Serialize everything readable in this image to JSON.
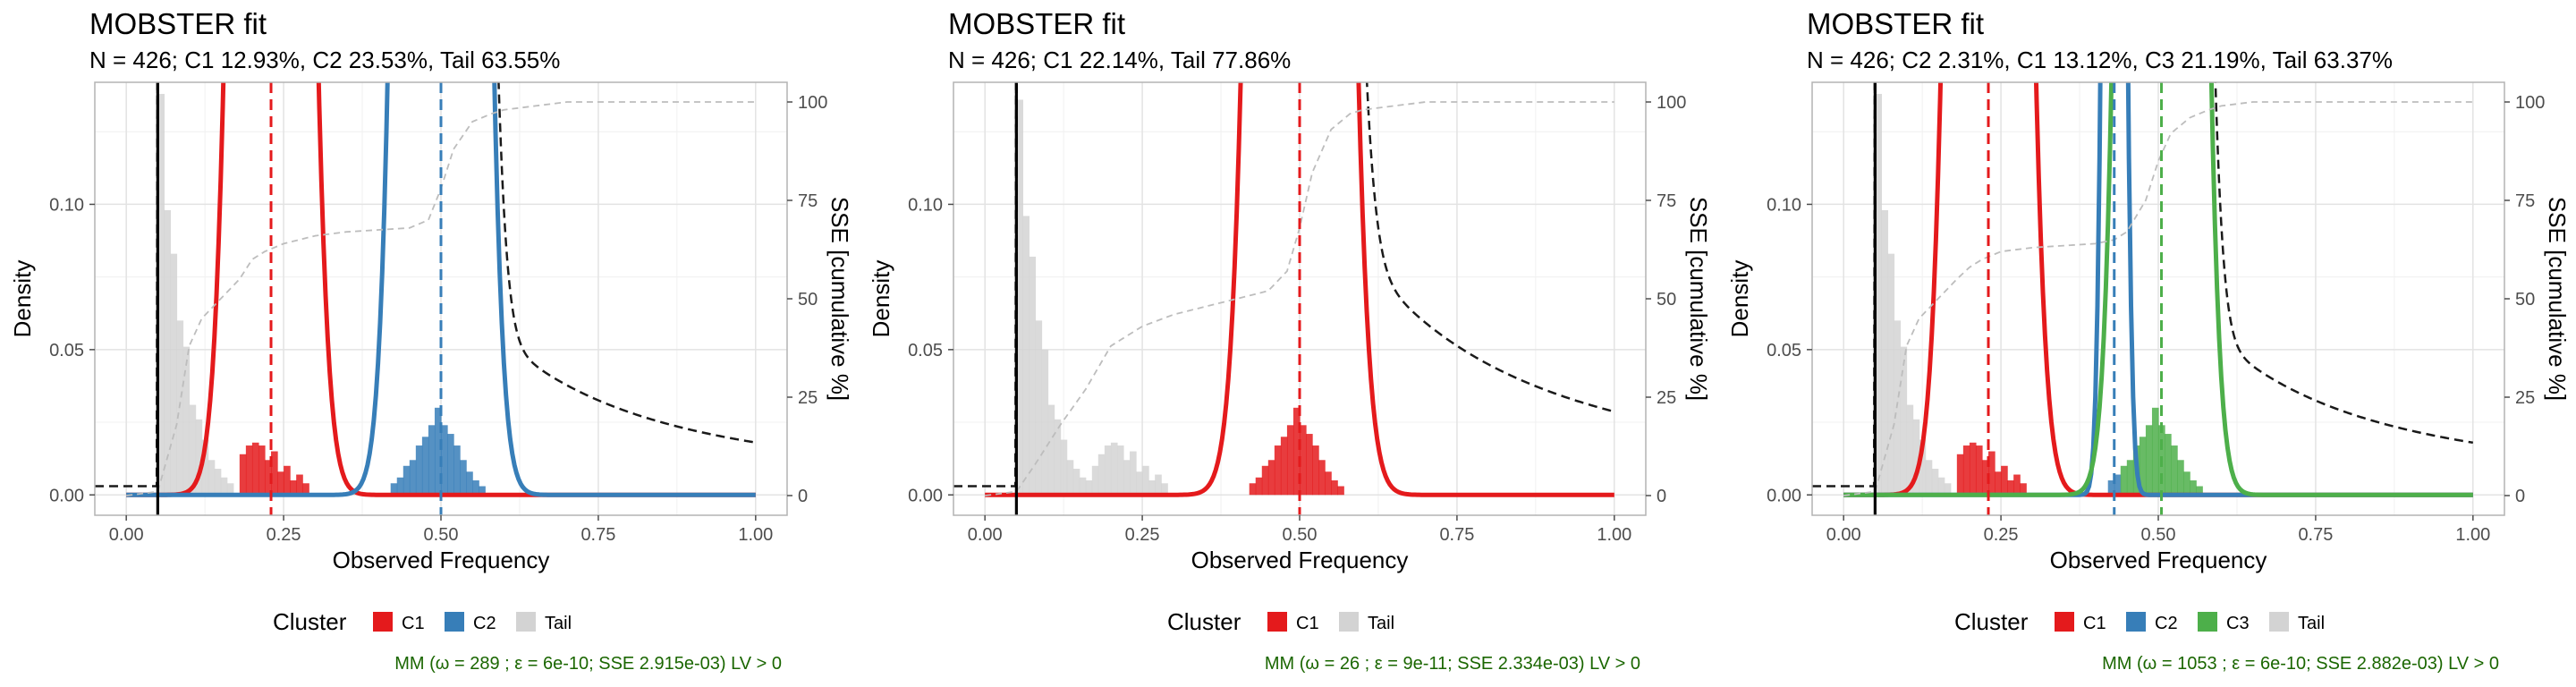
{
  "chart_data": [
    {
      "type": "histogram",
      "title": "MOBSTER fit",
      "subtitle": "N = 426; C1 12.93%, C2 23.53%, Tail 63.55%",
      "xlabel": "Observed Frequency",
      "ylabel": "Density",
      "y2label": "SSE [cumulative %]",
      "xlim": [
        -0.05,
        1.05
      ],
      "ylim": [
        -0.007,
        0.142
      ],
      "y2lim": [
        -5,
        105
      ],
      "xticks": [
        0,
        0.25,
        0.5,
        0.75,
        1
      ],
      "xtick_labels": [
        "0.00",
        "0.25",
        "0.50",
        "0.75",
        "1.00"
      ],
      "yticks": [
        0,
        0.05,
        0.1
      ],
      "ytick_labels": [
        "0.00",
        "0.05",
        "0.10"
      ],
      "y2ticks": [
        0,
        25,
        50,
        75,
        100
      ],
      "y2tick_labels": [
        "0",
        "25",
        "50",
        "75",
        "100"
      ],
      "grid": true,
      "legend_position": "bottom",
      "legend_title": "Cluster",
      "legend": [
        {
          "label": "C1",
          "color": "#E41A1C"
        },
        {
          "label": "C2",
          "color": "#377EB8"
        },
        {
          "label": "Tail",
          "color": "#D3D3D3"
        }
      ],
      "caption": "MM (ω = 289 ; ε = 6e-10; SSE 2.915e-03) LV > 0",
      "tail": {
        "xmin": 0.05,
        "alpha": 1.35,
        "weight": 0.6355
      },
      "components": [
        {
          "name": "C1",
          "mean": 0.23,
          "sd": 0.035,
          "weight": 0.1293,
          "color": "#E41A1C"
        },
        {
          "name": "C2",
          "mean": 0.5,
          "sd": 0.035,
          "weight": 0.2353,
          "color": "#377EB8"
        }
      ],
      "mean_lines": [
        {
          "x": 0.05,
          "color": "#000000"
        },
        {
          "x": 0.23,
          "color": "#E41A1C"
        },
        {
          "x": 0.5,
          "color": "#377EB8"
        }
      ],
      "bars": [
        {
          "x": 0.055,
          "y": 0.138,
          "cluster": "Tail"
        },
        {
          "x": 0.065,
          "y": 0.098,
          "cluster": "Tail"
        },
        {
          "x": 0.075,
          "y": 0.083,
          "cluster": "Tail"
        },
        {
          "x": 0.085,
          "y": 0.06,
          "cluster": "Tail"
        },
        {
          "x": 0.095,
          "y": 0.051,
          "cluster": "Tail"
        },
        {
          "x": 0.105,
          "y": 0.031,
          "cluster": "Tail"
        },
        {
          "x": 0.115,
          "y": 0.026,
          "cluster": "Tail"
        },
        {
          "x": 0.125,
          "y": 0.019,
          "cluster": "Tail"
        },
        {
          "x": 0.135,
          "y": 0.012,
          "cluster": "Tail"
        },
        {
          "x": 0.145,
          "y": 0.009,
          "cluster": "Tail"
        },
        {
          "x": 0.155,
          "y": 0.006,
          "cluster": "Tail"
        },
        {
          "x": 0.165,
          "y": 0.004,
          "cluster": "Tail"
        },
        {
          "x": 0.185,
          "y": 0.014,
          "cluster": "C1"
        },
        {
          "x": 0.195,
          "y": 0.017,
          "cluster": "C1"
        },
        {
          "x": 0.205,
          "y": 0.018,
          "cluster": "C1"
        },
        {
          "x": 0.215,
          "y": 0.017,
          "cluster": "C1"
        },
        {
          "x": 0.225,
          "y": 0.012,
          "cluster": "C1"
        },
        {
          "x": 0.235,
          "y": 0.015,
          "cluster": "C1"
        },
        {
          "x": 0.245,
          "y": 0.008,
          "cluster": "C1"
        },
        {
          "x": 0.255,
          "y": 0.01,
          "cluster": "C1"
        },
        {
          "x": 0.265,
          "y": 0.005,
          "cluster": "C1"
        },
        {
          "x": 0.275,
          "y": 0.007,
          "cluster": "C1"
        },
        {
          "x": 0.285,
          "y": 0.004,
          "cluster": "C1"
        },
        {
          "x": 0.425,
          "y": 0.004,
          "cluster": "C2"
        },
        {
          "x": 0.435,
          "y": 0.006,
          "cluster": "C2"
        },
        {
          "x": 0.445,
          "y": 0.01,
          "cluster": "C2"
        },
        {
          "x": 0.455,
          "y": 0.012,
          "cluster": "C2"
        },
        {
          "x": 0.465,
          "y": 0.017,
          "cluster": "C2"
        },
        {
          "x": 0.475,
          "y": 0.02,
          "cluster": "C2"
        },
        {
          "x": 0.485,
          "y": 0.024,
          "cluster": "C2"
        },
        {
          "x": 0.495,
          "y": 0.03,
          "cluster": "C2"
        },
        {
          "x": 0.505,
          "y": 0.024,
          "cluster": "C2"
        },
        {
          "x": 0.515,
          "y": 0.021,
          "cluster": "C2"
        },
        {
          "x": 0.525,
          "y": 0.017,
          "cluster": "C2"
        },
        {
          "x": 0.535,
          "y": 0.012,
          "cluster": "C2"
        },
        {
          "x": 0.545,
          "y": 0.008,
          "cluster": "C2"
        },
        {
          "x": 0.555,
          "y": 0.005,
          "cluster": "C2"
        },
        {
          "x": 0.565,
          "y": 0.003,
          "cluster": "C2"
        }
      ],
      "sse_curve": {
        "x": [
          0,
          0.05,
          0.08,
          0.1,
          0.12,
          0.15,
          0.18,
          0.2,
          0.22,
          0.25,
          0.3,
          0.35,
          0.4,
          0.45,
          0.48,
          0.5,
          0.52,
          0.55,
          0.58,
          0.6,
          0.65,
          0.7,
          0.75,
          0.8,
          1.0
        ],
        "y": [
          0,
          1,
          18,
          38,
          45,
          50,
          55,
          60,
          62,
          64,
          66,
          67,
          67.5,
          68,
          70,
          78,
          88,
          95,
          97,
          98,
          99,
          100,
          100,
          100,
          100
        ]
      }
    },
    {
      "type": "histogram",
      "title": "MOBSTER fit",
      "subtitle": "N = 426; C1 22.14%, Tail 77.86%",
      "xlabel": "Observed Frequency",
      "ylabel": "Density",
      "y2label": "SSE [cumulative %]",
      "xlim": [
        -0.05,
        1.05
      ],
      "ylim": [
        -0.007,
        0.142
      ],
      "y2lim": [
        -5,
        105
      ],
      "xticks": [
        0,
        0.25,
        0.5,
        0.75,
        1
      ],
      "xtick_labels": [
        "0.00",
        "0.25",
        "0.50",
        "0.75",
        "1.00"
      ],
      "yticks": [
        0,
        0.05,
        0.1
      ],
      "ytick_labels": [
        "0.00",
        "0.05",
        "0.10"
      ],
      "y2ticks": [
        0,
        25,
        50,
        75,
        100
      ],
      "y2tick_labels": [
        "0",
        "25",
        "50",
        "75",
        "100"
      ],
      "grid": true,
      "legend_position": "bottom",
      "legend_title": "Cluster",
      "legend": [
        {
          "label": "C1",
          "color": "#E41A1C"
        },
        {
          "label": "Tail",
          "color": "#D3D3D3"
        }
      ],
      "caption": "MM (ω = 26 ; ε = 9e-11; SSE 2.334e-03) LV > 0",
      "tail": {
        "xmin": 0.05,
        "alpha": 1.2,
        "weight": 0.7786
      },
      "components": [
        {
          "name": "C1",
          "mean": 0.5,
          "sd": 0.04,
          "weight": 0.2214,
          "color": "#E41A1C"
        }
      ],
      "mean_lines": [
        {
          "x": 0.05,
          "color": "#000000"
        },
        {
          "x": 0.5,
          "color": "#E41A1C"
        }
      ],
      "bars": [
        {
          "x": 0.055,
          "y": 0.136,
          "cluster": "Tail"
        },
        {
          "x": 0.065,
          "y": 0.096,
          "cluster": "Tail"
        },
        {
          "x": 0.075,
          "y": 0.082,
          "cluster": "Tail"
        },
        {
          "x": 0.085,
          "y": 0.06,
          "cluster": "Tail"
        },
        {
          "x": 0.095,
          "y": 0.05,
          "cluster": "Tail"
        },
        {
          "x": 0.105,
          "y": 0.031,
          "cluster": "Tail"
        },
        {
          "x": 0.115,
          "y": 0.026,
          "cluster": "Tail"
        },
        {
          "x": 0.125,
          "y": 0.019,
          "cluster": "Tail"
        },
        {
          "x": 0.135,
          "y": 0.012,
          "cluster": "Tail"
        },
        {
          "x": 0.145,
          "y": 0.009,
          "cluster": "Tail"
        },
        {
          "x": 0.155,
          "y": 0.006,
          "cluster": "Tail"
        },
        {
          "x": 0.165,
          "y": 0.005,
          "cluster": "Tail"
        },
        {
          "x": 0.175,
          "y": 0.01,
          "cluster": "Tail"
        },
        {
          "x": 0.185,
          "y": 0.014,
          "cluster": "Tail"
        },
        {
          "x": 0.195,
          "y": 0.017,
          "cluster": "Tail"
        },
        {
          "x": 0.205,
          "y": 0.018,
          "cluster": "Tail"
        },
        {
          "x": 0.215,
          "y": 0.017,
          "cluster": "Tail"
        },
        {
          "x": 0.225,
          "y": 0.012,
          "cluster": "Tail"
        },
        {
          "x": 0.235,
          "y": 0.015,
          "cluster": "Tail"
        },
        {
          "x": 0.245,
          "y": 0.008,
          "cluster": "Tail"
        },
        {
          "x": 0.255,
          "y": 0.01,
          "cluster": "Tail"
        },
        {
          "x": 0.265,
          "y": 0.005,
          "cluster": "Tail"
        },
        {
          "x": 0.275,
          "y": 0.007,
          "cluster": "Tail"
        },
        {
          "x": 0.285,
          "y": 0.004,
          "cluster": "Tail"
        },
        {
          "x": 0.425,
          "y": 0.004,
          "cluster": "C1"
        },
        {
          "x": 0.435,
          "y": 0.006,
          "cluster": "C1"
        },
        {
          "x": 0.445,
          "y": 0.01,
          "cluster": "C1"
        },
        {
          "x": 0.455,
          "y": 0.012,
          "cluster": "C1"
        },
        {
          "x": 0.465,
          "y": 0.017,
          "cluster": "C1"
        },
        {
          "x": 0.475,
          "y": 0.02,
          "cluster": "C1"
        },
        {
          "x": 0.485,
          "y": 0.024,
          "cluster": "C1"
        },
        {
          "x": 0.495,
          "y": 0.03,
          "cluster": "C1"
        },
        {
          "x": 0.505,
          "y": 0.024,
          "cluster": "C1"
        },
        {
          "x": 0.515,
          "y": 0.021,
          "cluster": "C1"
        },
        {
          "x": 0.525,
          "y": 0.017,
          "cluster": "C1"
        },
        {
          "x": 0.535,
          "y": 0.012,
          "cluster": "C1"
        },
        {
          "x": 0.545,
          "y": 0.008,
          "cluster": "C1"
        },
        {
          "x": 0.555,
          "y": 0.005,
          "cluster": "C1"
        },
        {
          "x": 0.565,
          "y": 0.003,
          "cluster": "C1"
        }
      ],
      "sse_curve": {
        "x": [
          0,
          0.05,
          0.08,
          0.12,
          0.16,
          0.2,
          0.25,
          0.3,
          0.35,
          0.4,
          0.45,
          0.48,
          0.5,
          0.52,
          0.55,
          0.58,
          0.6,
          0.65,
          0.7,
          0.75,
          1.0
        ],
        "y": [
          0,
          1,
          8,
          18,
          27,
          38,
          43,
          46,
          48,
          50,
          52,
          57,
          68,
          82,
          93,
          97,
          98,
          99,
          100,
          100,
          100
        ]
      }
    },
    {
      "type": "histogram",
      "title": "MOBSTER fit",
      "subtitle": "N = 426; C2 2.31%, C1 13.12%, C3 21.19%, Tail 63.37%",
      "xlabel": "Observed Frequency",
      "ylabel": "Density",
      "y2label": "SSE [cumulative %]",
      "xlim": [
        -0.05,
        1.05
      ],
      "ylim": [
        -0.007,
        0.142
      ],
      "y2lim": [
        -5,
        105
      ],
      "xticks": [
        0,
        0.25,
        0.5,
        0.75,
        1
      ],
      "xtick_labels": [
        "0.00",
        "0.25",
        "0.50",
        "0.75",
        "1.00"
      ],
      "yticks": [
        0,
        0.05,
        0.1
      ],
      "ytick_labels": [
        "0.00",
        "0.05",
        "0.10"
      ],
      "y2ticks": [
        0,
        25,
        50,
        75,
        100
      ],
      "y2tick_labels": [
        "0",
        "25",
        "50",
        "75",
        "100"
      ],
      "grid": true,
      "legend_position": "bottom",
      "legend_title": "Cluster",
      "legend": [
        {
          "label": "C1",
          "color": "#E41A1C"
        },
        {
          "label": "C2",
          "color": "#377EB8"
        },
        {
          "label": "C3",
          "color": "#4DAF4A"
        },
        {
          "label": "Tail",
          "color": "#D3D3D3"
        }
      ],
      "caption": "MM (ω = 1053 ; ε = 6e-10; SSE 2.882e-03) LV > 0",
      "tail": {
        "xmin": 0.05,
        "alpha": 1.35,
        "weight": 0.6337
      },
      "components": [
        {
          "name": "C1",
          "mean": 0.23,
          "sd": 0.035,
          "weight": 0.1312,
          "color": "#E41A1C"
        },
        {
          "name": "C2",
          "mean": 0.43,
          "sd": 0.012,
          "weight": 0.0231,
          "color": "#377EB8"
        },
        {
          "name": "C3",
          "mean": 0.505,
          "sd": 0.033,
          "weight": 0.2119,
          "color": "#4DAF4A"
        }
      ],
      "mean_lines": [
        {
          "x": 0.05,
          "color": "#000000"
        },
        {
          "x": 0.23,
          "color": "#E41A1C"
        },
        {
          "x": 0.43,
          "color": "#377EB8"
        },
        {
          "x": 0.505,
          "color": "#4DAF4A"
        }
      ],
      "bars": [
        {
          "x": 0.055,
          "y": 0.138,
          "cluster": "Tail"
        },
        {
          "x": 0.065,
          "y": 0.098,
          "cluster": "Tail"
        },
        {
          "x": 0.075,
          "y": 0.083,
          "cluster": "Tail"
        },
        {
          "x": 0.085,
          "y": 0.06,
          "cluster": "Tail"
        },
        {
          "x": 0.095,
          "y": 0.051,
          "cluster": "Tail"
        },
        {
          "x": 0.105,
          "y": 0.031,
          "cluster": "Tail"
        },
        {
          "x": 0.115,
          "y": 0.026,
          "cluster": "Tail"
        },
        {
          "x": 0.125,
          "y": 0.019,
          "cluster": "Tail"
        },
        {
          "x": 0.135,
          "y": 0.012,
          "cluster": "Tail"
        },
        {
          "x": 0.145,
          "y": 0.009,
          "cluster": "Tail"
        },
        {
          "x": 0.155,
          "y": 0.006,
          "cluster": "Tail"
        },
        {
          "x": 0.165,
          "y": 0.004,
          "cluster": "Tail"
        },
        {
          "x": 0.185,
          "y": 0.014,
          "cluster": "C1"
        },
        {
          "x": 0.195,
          "y": 0.017,
          "cluster": "C1"
        },
        {
          "x": 0.205,
          "y": 0.018,
          "cluster": "C1"
        },
        {
          "x": 0.215,
          "y": 0.017,
          "cluster": "C1"
        },
        {
          "x": 0.225,
          "y": 0.012,
          "cluster": "C1"
        },
        {
          "x": 0.235,
          "y": 0.015,
          "cluster": "C1"
        },
        {
          "x": 0.245,
          "y": 0.008,
          "cluster": "C1"
        },
        {
          "x": 0.255,
          "y": 0.01,
          "cluster": "C1"
        },
        {
          "x": 0.265,
          "y": 0.005,
          "cluster": "C1"
        },
        {
          "x": 0.275,
          "y": 0.007,
          "cluster": "C1"
        },
        {
          "x": 0.285,
          "y": 0.004,
          "cluster": "C1"
        },
        {
          "x": 0.425,
          "y": 0.005,
          "cluster": "C2"
        },
        {
          "x": 0.435,
          "y": 0.007,
          "cluster": "C2"
        },
        {
          "x": 0.445,
          "y": 0.01,
          "cluster": "C3"
        },
        {
          "x": 0.455,
          "y": 0.012,
          "cluster": "C3"
        },
        {
          "x": 0.465,
          "y": 0.017,
          "cluster": "C3"
        },
        {
          "x": 0.475,
          "y": 0.02,
          "cluster": "C3"
        },
        {
          "x": 0.485,
          "y": 0.024,
          "cluster": "C3"
        },
        {
          "x": 0.495,
          "y": 0.03,
          "cluster": "C3"
        },
        {
          "x": 0.505,
          "y": 0.024,
          "cluster": "C3"
        },
        {
          "x": 0.515,
          "y": 0.021,
          "cluster": "C3"
        },
        {
          "x": 0.525,
          "y": 0.017,
          "cluster": "C3"
        },
        {
          "x": 0.535,
          "y": 0.012,
          "cluster": "C3"
        },
        {
          "x": 0.545,
          "y": 0.008,
          "cluster": "C3"
        },
        {
          "x": 0.555,
          "y": 0.005,
          "cluster": "C3"
        },
        {
          "x": 0.565,
          "y": 0.003,
          "cluster": "C3"
        }
      ],
      "sse_curve": {
        "x": [
          0,
          0.05,
          0.08,
          0.1,
          0.12,
          0.15,
          0.18,
          0.2,
          0.22,
          0.25,
          0.3,
          0.35,
          0.4,
          0.43,
          0.45,
          0.48,
          0.5,
          0.52,
          0.55,
          0.58,
          0.6,
          0.65,
          0.7,
          0.75,
          0.8,
          1.0
        ],
        "y": [
          0,
          1,
          18,
          38,
          45,
          50,
          55,
          58,
          60,
          62,
          63,
          63.5,
          64,
          65,
          67,
          75,
          85,
          92,
          96,
          98,
          99,
          100,
          100,
          100,
          100,
          100
        ]
      }
    }
  ]
}
